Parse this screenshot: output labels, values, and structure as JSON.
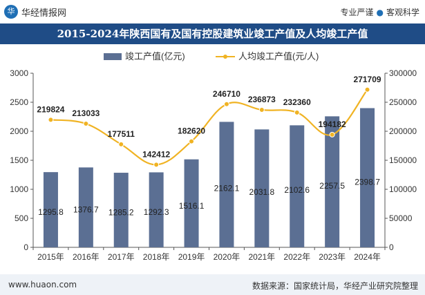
{
  "header": {
    "logo_glyph": "华",
    "brand": "华经情报网",
    "tag1": "专业严谨",
    "tag2": "客观科学",
    "separator": "●"
  },
  "chart_data": {
    "type": "bar+line",
    "title": "2015-2024年陕西国有及国有控股建筑业竣工产值及人均竣工产值",
    "categories": [
      "2015年",
      "2016年",
      "2017年",
      "2018年",
      "2019年",
      "2020年",
      "2021年",
      "2022年",
      "2023年",
      "2024年"
    ],
    "series": [
      {
        "name": "竣工产值(亿元)",
        "type": "bar",
        "axis": "left",
        "color": "#5b6f93",
        "values": [
          1295.8,
          1376.7,
          1285.2,
          1292.3,
          1516.1,
          2162.1,
          2031.8,
          2102.6,
          2257.5,
          2398.7
        ],
        "labels": [
          "1295.8",
          "1376.7",
          "1285.2",
          "1292.3",
          "1516.1",
          "2162.1",
          "2031.8",
          "2102.6",
          "2257.5",
          "2398.7"
        ]
      },
      {
        "name": "人均竣工产值(元/人)",
        "type": "line",
        "axis": "right",
        "color": "#f0b323",
        "values": [
          219824,
          213033,
          177511,
          142412,
          182620,
          246710,
          236873,
          232360,
          194182,
          271709
        ],
        "labels": [
          "219824",
          "213033",
          "177511",
          "142412",
          "182620",
          "246710",
          "236873",
          "232360",
          "194182",
          "271709"
        ]
      }
    ],
    "y_left": {
      "min": 0,
      "max": 3000,
      "ticks": [
        "0",
        "500",
        "1000",
        "1500",
        "2000",
        "2500",
        "3000"
      ]
    },
    "y_right": {
      "min": 0,
      "max": 300000,
      "ticks": [
        "0",
        "50000",
        "100000",
        "150000",
        "200000",
        "250000",
        "300000"
      ]
    },
    "legend_position": "top",
    "grid": false
  },
  "footer": {
    "site": "www.huaon.com",
    "source": "数据来源：国家统计局，华经产业研究院整理"
  }
}
